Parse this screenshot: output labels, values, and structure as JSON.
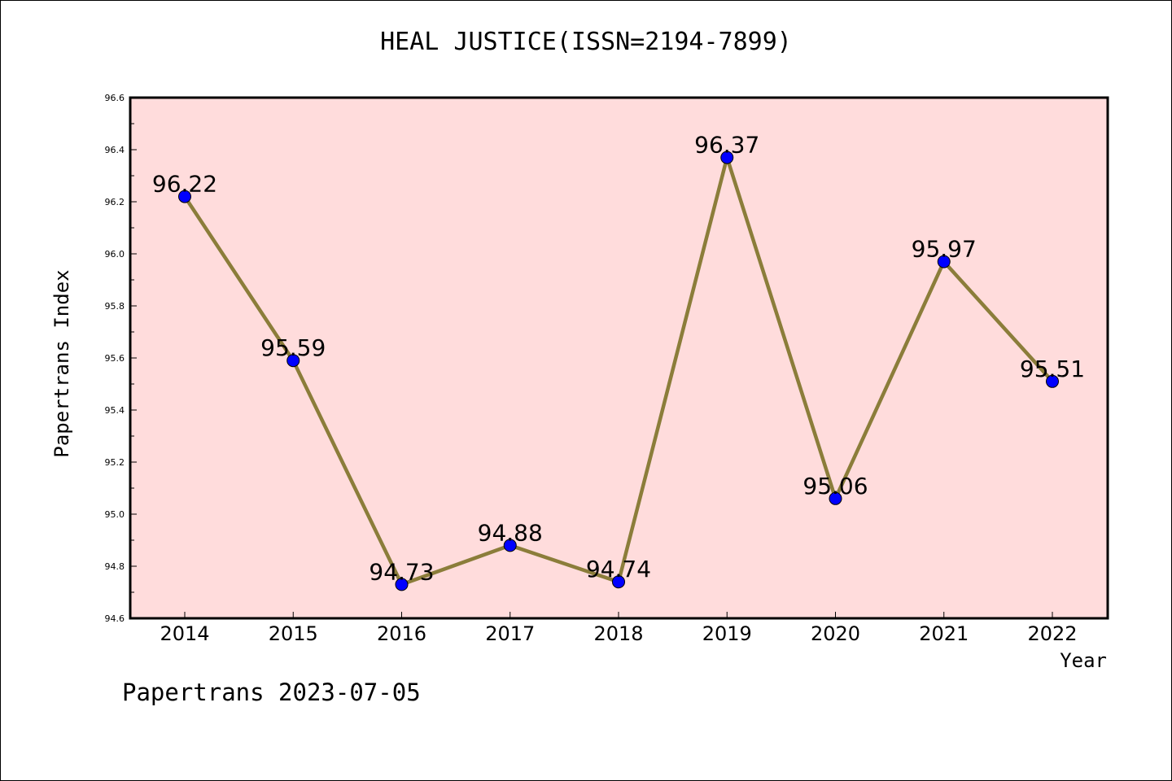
{
  "title": "HEAL JUSTICE(ISSN=2194-7899)",
  "footer": "Papertrans 2023-07-05",
  "chart_data": {
    "type": "line",
    "title": "HEAL JUSTICE(ISSN=2194-7899)",
    "xlabel": "Year",
    "ylabel": "Papertrans Index",
    "categories": [
      "2014",
      "2015",
      "2016",
      "2017",
      "2018",
      "2019",
      "2020",
      "2021",
      "2022"
    ],
    "values": [
      96.22,
      95.59,
      94.73,
      94.88,
      94.74,
      96.37,
      95.06,
      95.97,
      95.51
    ],
    "data_labels": [
      "96.22",
      "95.59",
      "94.73",
      "94.88",
      "94.74",
      "96.37",
      "95.06",
      "95.97",
      "95.51"
    ],
    "ylim": [
      94.6,
      96.6
    ],
    "yticks": [
      "94.6",
      "94.8",
      "95.0",
      "95.2",
      "95.4",
      "95.6",
      "95.8",
      "96.0",
      "96.2",
      "96.4",
      "96.6"
    ],
    "grid": false,
    "legend": "none",
    "colors": {
      "plot_background": "#ffdcdc",
      "line": "#8b7d3a",
      "marker": "#0000ff"
    }
  }
}
